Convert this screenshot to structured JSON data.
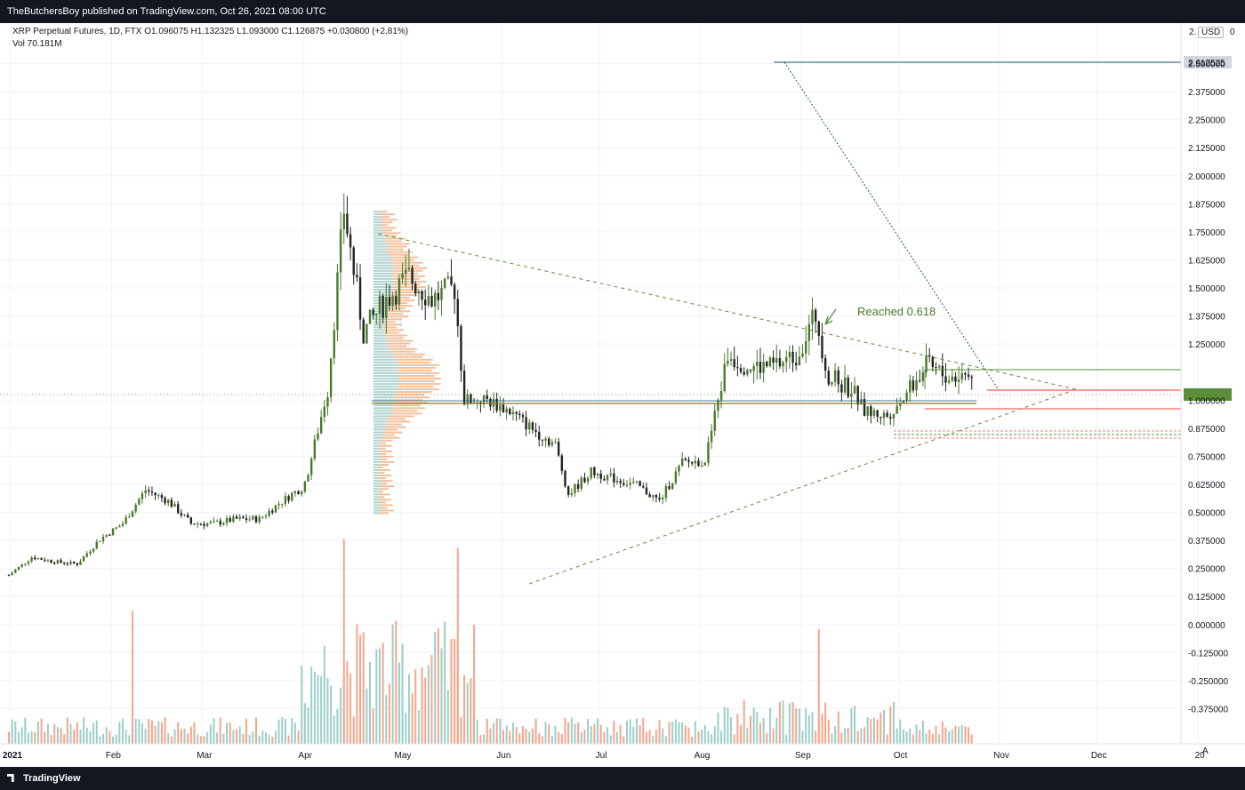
{
  "header": {
    "publisher_text": "TheButchersBoy published on TradingView.com, Oct 26, 2021 08:00 UTC"
  },
  "legend": {
    "line1": "XRP Perpetual Futures, 1D, FTX  O1.096075  H1.132325  L1.093000  C1.126875  +0.030800 (+2.81%)",
    "line2": "Vol  70.181M"
  },
  "price_axis": {
    "currency": "USD",
    "ticks": [
      "2.500000",
      "2.375000",
      "2.250000",
      "2.125000",
      "2.000000",
      "1.875000",
      "1.750000",
      "1.625000",
      "1.500000",
      "1.375000",
      "1.250000",
      "1.000000",
      "0.875000",
      "0.750000",
      "0.625000",
      "0.500000",
      "0.375000",
      "0.250000",
      "0.125000",
      "0.000000",
      "-0.125000",
      "-0.250000",
      "-0.375000"
    ],
    "tick_values": [
      2.5,
      2.375,
      2.25,
      2.125,
      2.0,
      1.875,
      1.75,
      1.625,
      1.5,
      1.375,
      1.25,
      1.0,
      0.875,
      0.75,
      0.625,
      0.5,
      0.375,
      0.25,
      0.125,
      0.0,
      -0.125,
      -0.25,
      -0.375
    ],
    "label_2612": "2.612525",
    "partial_top": "2.",
    "partial_top2": "0"
  },
  "time_axis": {
    "labels": [
      "2021",
      "Feb",
      "Mar",
      "Apr",
      "May",
      "Jun",
      "Jul",
      "Aug",
      "Sep",
      "Oct",
      "Nov",
      "Dec",
      "20"
    ]
  },
  "annotation": {
    "text": "Reached 0.618"
  },
  "footer": {
    "brand": "TradingView",
    "auto_label": "A"
  },
  "colors": {
    "up": "#4a7a2c",
    "down": "#222222",
    "accent_green": "#5a8f3a",
    "orange": "#f0b080",
    "teal": "#9ac9c4",
    "red_line": "#f08070",
    "vol_orange": "#f5a58a",
    "vol_teal": "#9ccfc9"
  },
  "chart_data": {
    "type": "candlestick",
    "title": "XRP Perpetual Futures, 1D, FTX",
    "y_range": [
      -0.4,
      2.7
    ],
    "x_range": [
      "2021-01-01",
      "2021-12-31"
    ],
    "key_levels": [
      2.612525,
      1.23,
      1.15,
      1.12,
      1.07,
      0.95
    ],
    "series_close": [
      {
        "date": "2021-01-01",
        "close": 0.22
      },
      {
        "date": "2021-01-08",
        "close": 0.3
      },
      {
        "date": "2021-01-15",
        "close": 0.28
      },
      {
        "date": "2021-01-22",
        "close": 0.27
      },
      {
        "date": "2021-01-29",
        "close": 0.38
      },
      {
        "date": "2021-02-05",
        "close": 0.45
      },
      {
        "date": "2021-02-12",
        "close": 0.6
      },
      {
        "date": "2021-02-19",
        "close": 0.55
      },
      {
        "date": "2021-02-26",
        "close": 0.45
      },
      {
        "date": "2021-03-05",
        "close": 0.45
      },
      {
        "date": "2021-03-12",
        "close": 0.47
      },
      {
        "date": "2021-03-19",
        "close": 0.47
      },
      {
        "date": "2021-03-26",
        "close": 0.55
      },
      {
        "date": "2021-04-02",
        "close": 0.62
      },
      {
        "date": "2021-04-09",
        "close": 1.05
      },
      {
        "date": "2021-04-14",
        "close": 1.85
      },
      {
        "date": "2021-04-20",
        "close": 1.3
      },
      {
        "date": "2021-04-27",
        "close": 1.45
      },
      {
        "date": "2021-05-04",
        "close": 1.55
      },
      {
        "date": "2021-05-11",
        "close": 1.45
      },
      {
        "date": "2021-05-18",
        "close": 1.5
      },
      {
        "date": "2021-05-21",
        "close": 1.0
      },
      {
        "date": "2021-05-28",
        "close": 1.0
      },
      {
        "date": "2021-06-04",
        "close": 0.95
      },
      {
        "date": "2021-06-11",
        "close": 0.87
      },
      {
        "date": "2021-06-18",
        "close": 0.8
      },
      {
        "date": "2021-06-22",
        "close": 0.58
      },
      {
        "date": "2021-06-29",
        "close": 0.68
      },
      {
        "date": "2021-07-06",
        "close": 0.65
      },
      {
        "date": "2021-07-13",
        "close": 0.62
      },
      {
        "date": "2021-07-20",
        "close": 0.55
      },
      {
        "date": "2021-07-27",
        "close": 0.72
      },
      {
        "date": "2021-08-03",
        "close": 0.73
      },
      {
        "date": "2021-08-10",
        "close": 1.2
      },
      {
        "date": "2021-08-17",
        "close": 1.15
      },
      {
        "date": "2021-08-24",
        "close": 1.15
      },
      {
        "date": "2021-08-31",
        "close": 1.2
      },
      {
        "date": "2021-09-06",
        "close": 1.38
      },
      {
        "date": "2021-09-10",
        "close": 1.1
      },
      {
        "date": "2021-09-17",
        "close": 1.05
      },
      {
        "date": "2021-09-21",
        "close": 0.95
      },
      {
        "date": "2021-09-28",
        "close": 0.93
      },
      {
        "date": "2021-10-05",
        "close": 1.05
      },
      {
        "date": "2021-10-10",
        "close": 1.15
      },
      {
        "date": "2021-10-17",
        "close": 1.1
      },
      {
        "date": "2021-10-24",
        "close": 1.12
      }
    ],
    "volume_peaks": [
      {
        "date": "2021-02-08",
        "volume_axis_value": 0.06
      },
      {
        "date": "2021-04-14",
        "volume_axis_value": 0.38
      },
      {
        "date": "2021-05-19",
        "volume_axis_value": 0.34
      },
      {
        "date": "2021-09-07",
        "volume_axis_value": -0.02
      }
    ]
  }
}
